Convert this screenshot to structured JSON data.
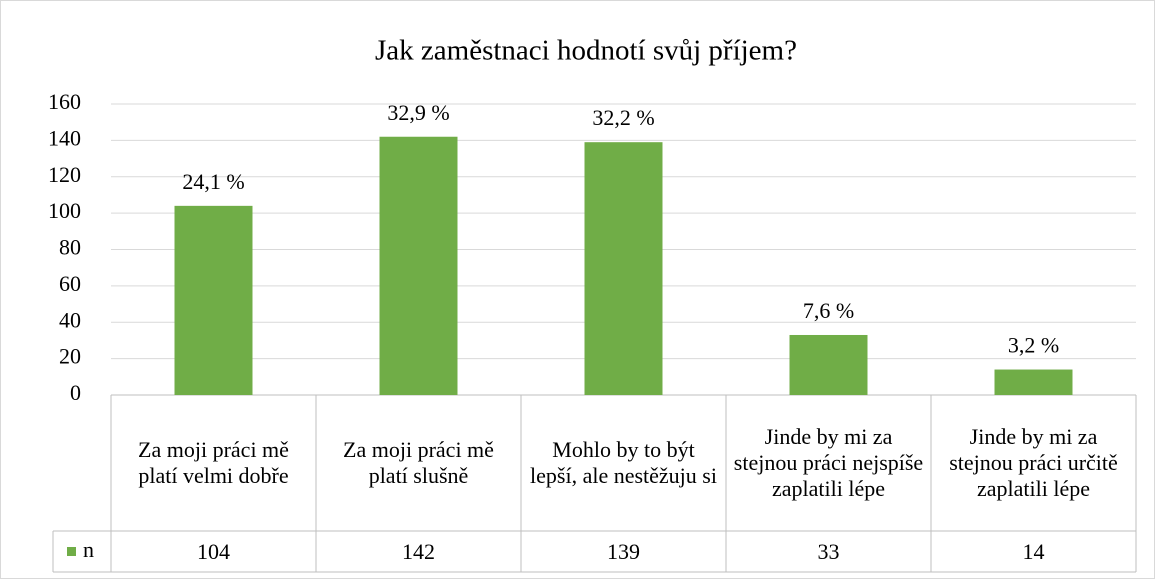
{
  "chart_data": {
    "type": "bar",
    "title": "Jak zaměstnaci hodnotí svůj příjem?",
    "categories": [
      "Za moji práci mě platí velmi dobře",
      "Za moji práci mě platí slušně",
      "Mohlo by to být lepší, ale nestěžuju si",
      "Jinde by mi za stejnou práci nejspíše zaplatili lépe",
      "Jinde by mi za stejnou práci určitě zaplatili lépe"
    ],
    "series": [
      {
        "name": "n",
        "color": "#70ad47",
        "values": [
          104,
          142,
          139,
          33,
          14
        ]
      }
    ],
    "annotations": [
      "24,1 %",
      "32,9 %",
      "32,2 %",
      "7,6 %",
      "3,2 %"
    ],
    "ylim": [
      0,
      160
    ],
    "yticks": [
      0,
      20,
      40,
      60,
      80,
      100,
      120,
      140,
      160
    ],
    "grid": true
  }
}
